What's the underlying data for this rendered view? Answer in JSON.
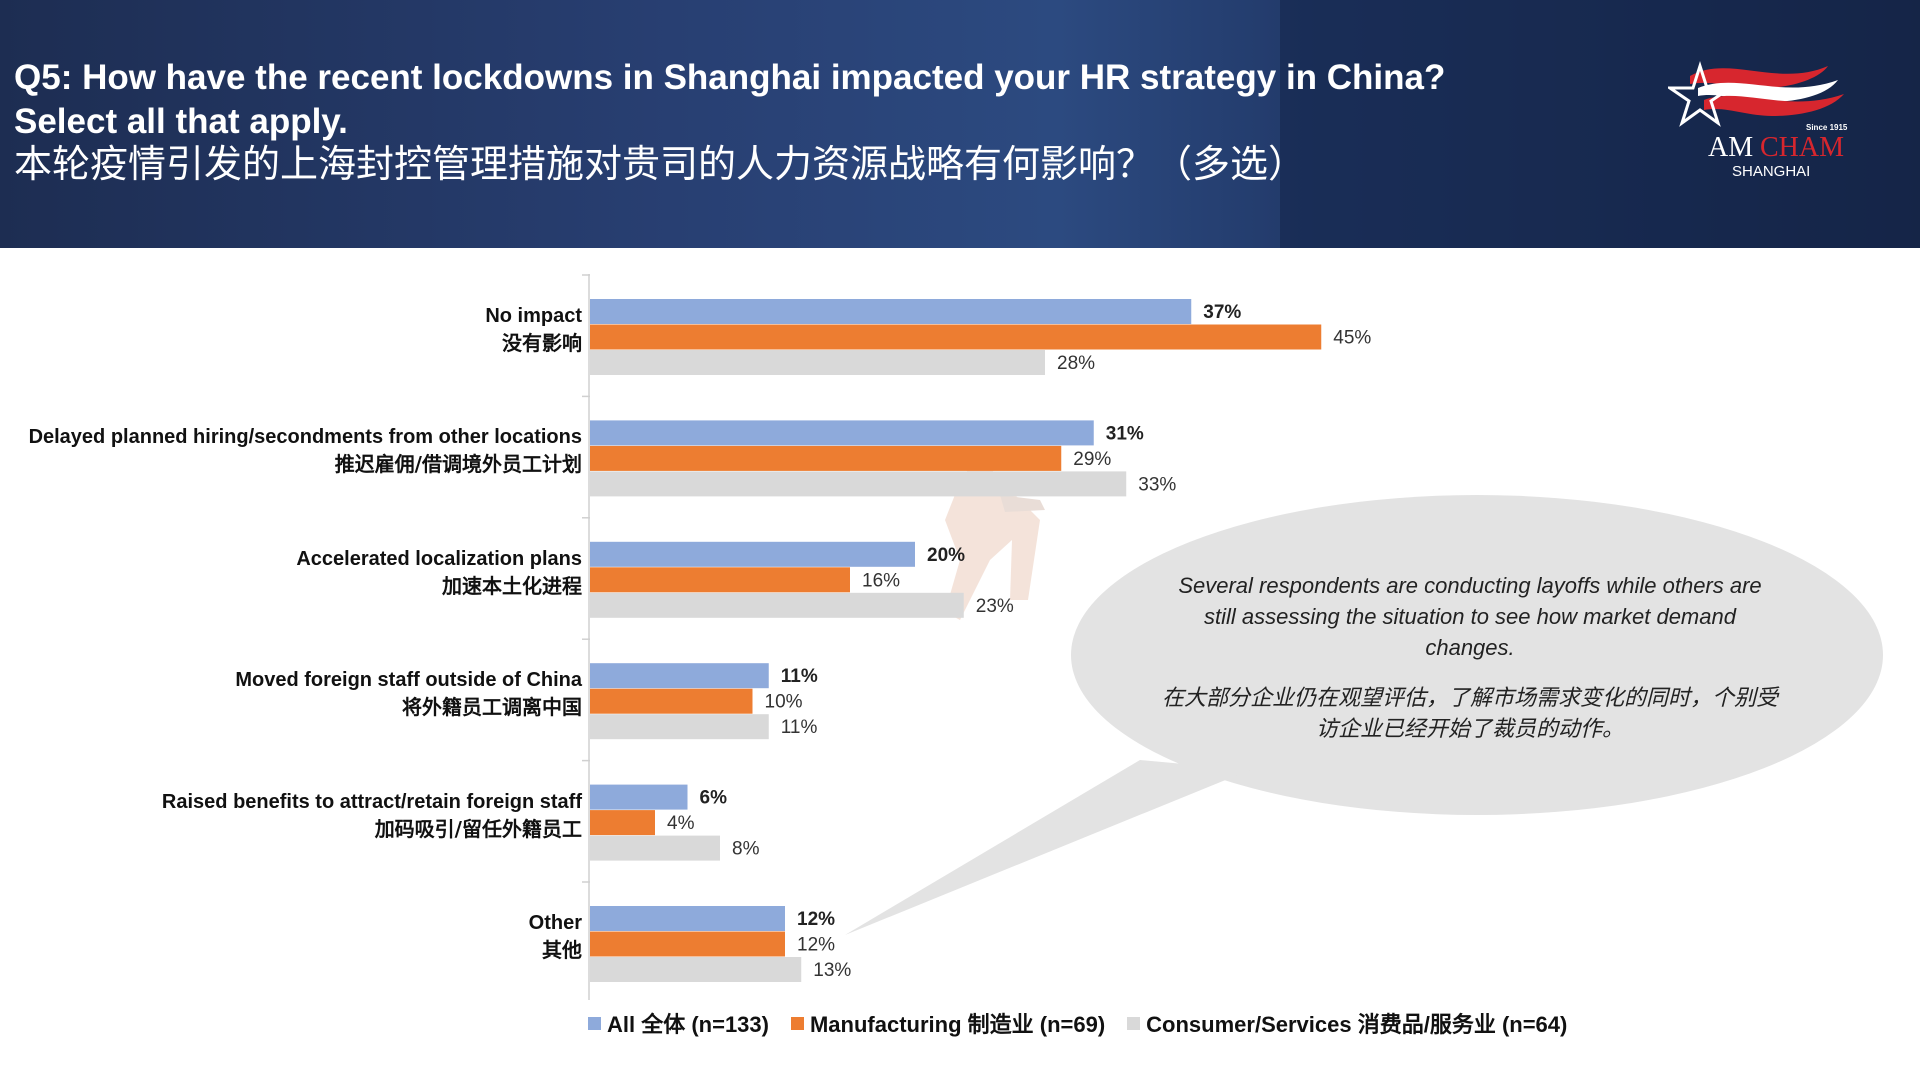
{
  "header": {
    "title_en": "Q5: How have the recent lockdowns in Shanghai impacted your HR strategy in China?",
    "title_en2": "Select all that apply.",
    "title_cn": "本轮疫情引发的上海封控管理措施对贵司的人力资源战略有何影响？（多选）"
  },
  "logo": {
    "since": "Since 1915",
    "am": "AM",
    "cham": "CHAM",
    "city": "SHANGHAI"
  },
  "chart_data": {
    "type": "bar",
    "orientation": "horizontal",
    "categories": [
      {
        "en": "No impact",
        "cn": "没有影响"
      },
      {
        "en": "Delayed planned hiring/secondments from other locations",
        "cn": "推迟雇佣/借调境外员工计划"
      },
      {
        "en": "Accelerated localization plans",
        "cn": "加速本土化进程"
      },
      {
        "en": "Moved foreign staff outside of China",
        "cn": "将外籍员工调离中国"
      },
      {
        "en": "Raised benefits to attract/retain foreign staff",
        "cn": "加码吸引/留任外籍员工"
      },
      {
        "en": "Other",
        "cn": "其他"
      }
    ],
    "series": [
      {
        "name": "All 全体 (n=133)",
        "color": "#8eaadb",
        "values": [
          37,
          31,
          20,
          11,
          6,
          12
        ],
        "bold_labels": true
      },
      {
        "name": "Manufacturing 制造业 (n=69)",
        "color": "#ed7d31",
        "values": [
          45,
          29,
          16,
          10,
          4,
          12
        ],
        "bold_labels": false
      },
      {
        "name": "Consumer/Services 消费品/服务业 (n=64)",
        "color": "#d9d9d9",
        "values": [
          28,
          33,
          23,
          11,
          8,
          13
        ],
        "bold_labels": false
      }
    ],
    "unit": "%",
    "legend_position": "bottom"
  },
  "callout": {
    "en": "Several respondents are conducting layoffs while others are still assessing the situation to see how market demand changes.",
    "cn": "在大部分企业仍在观望评估，了解市场需求变化的同时，个别受访企业已经开始了裁员的动作。"
  }
}
